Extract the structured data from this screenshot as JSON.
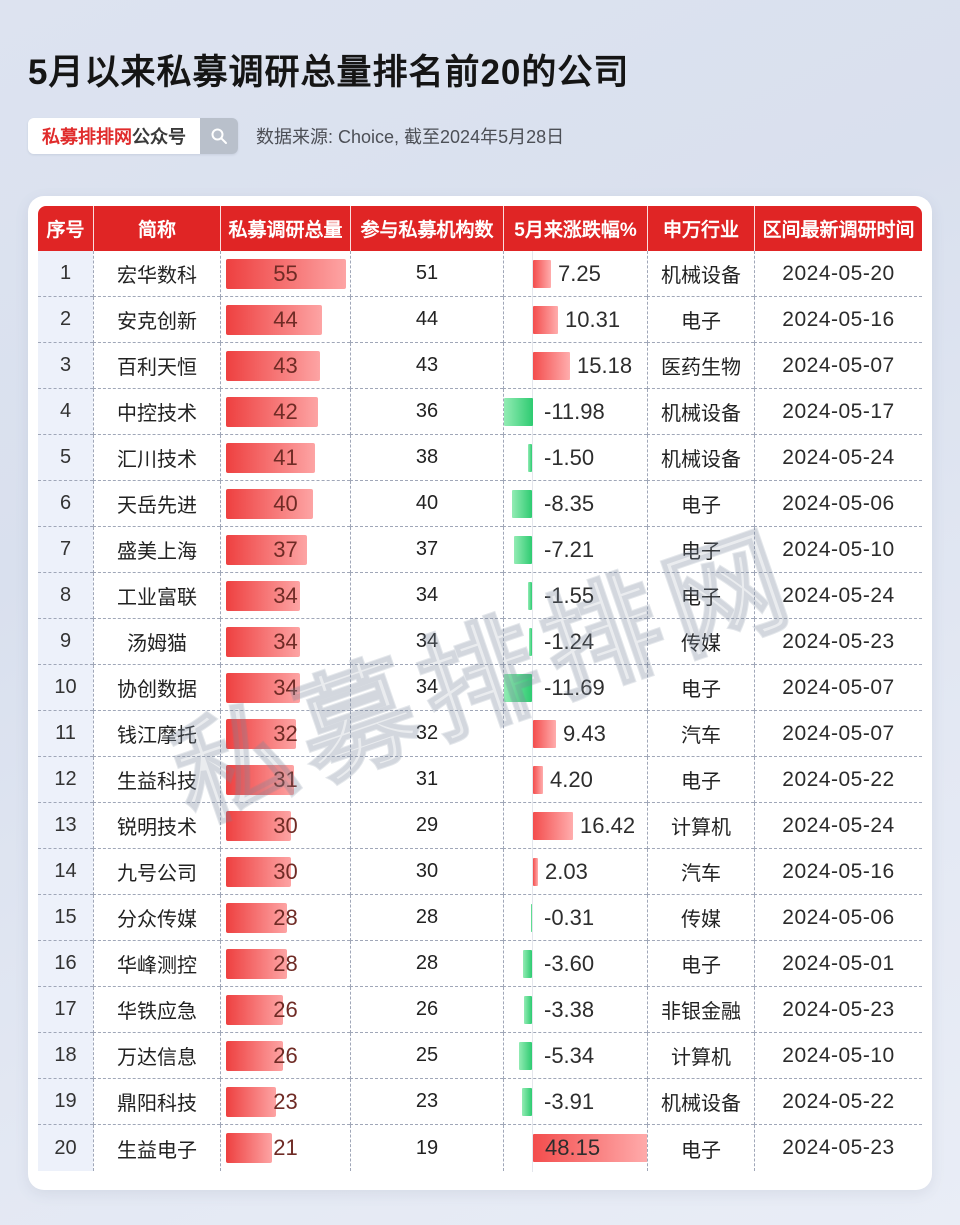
{
  "page": {
    "title": "5月以来私募调研总量排名前20的公司",
    "badge": {
      "brand": "私募排排网",
      "suffix": "公众号"
    },
    "source": "数据来源: Choice, 截至2024年5月28日",
    "watermark": "私募排排网"
  },
  "colors": {
    "header_red": "#e02525",
    "badge_brand_red": "#e02c2c",
    "badge_button_gray": "#b9c0cb",
    "rank_column_bg": "#edf1fa",
    "vol_bar_start": "#ee4040",
    "vol_bar_end": "#fda4a4",
    "pct_pos_start": "#f34d4d",
    "pct_pos_end": "#ffadad",
    "pct_neg_start": "#2ecb71",
    "pct_neg_end": "#93ecb4",
    "vol_num_text": "#6f2b25",
    "dashed_border": "#a0a7b8"
  },
  "chart_data": {
    "type": "table",
    "title": "5月以来私募调研总量排名前20的公司",
    "columns": [
      "序号",
      "简称",
      "私募调研总量",
      "参与私募机构数",
      "5月来涨跌幅%",
      "申万行业",
      "区间最新调研时间"
    ],
    "volume_axis_max": 55,
    "pct_axis_max": 48.15,
    "rows": [
      {
        "rank": 1,
        "name": "宏华数科",
        "volume": 55,
        "orgs": 51,
        "pct": "7.25",
        "industry": "机械设备",
        "date": "2024-05-20"
      },
      {
        "rank": 2,
        "name": "安克创新",
        "volume": 44,
        "orgs": 44,
        "pct": "10.31",
        "industry": "电子",
        "date": "2024-05-16"
      },
      {
        "rank": 3,
        "name": "百利天恒",
        "volume": 43,
        "orgs": 43,
        "pct": "15.18",
        "industry": "医药生物",
        "date": "2024-05-07"
      },
      {
        "rank": 4,
        "name": "中控技术",
        "volume": 42,
        "orgs": 36,
        "pct": "-11.98",
        "industry": "机械设备",
        "date": "2024-05-17"
      },
      {
        "rank": 5,
        "name": "汇川技术",
        "volume": 41,
        "orgs": 38,
        "pct": "-1.50",
        "industry": "机械设备",
        "date": "2024-05-24"
      },
      {
        "rank": 6,
        "name": "天岳先进",
        "volume": 40,
        "orgs": 40,
        "pct": "-8.35",
        "industry": "电子",
        "date": "2024-05-06"
      },
      {
        "rank": 7,
        "name": "盛美上海",
        "volume": 37,
        "orgs": 37,
        "pct": "-7.21",
        "industry": "电子",
        "date": "2024-05-10"
      },
      {
        "rank": 8,
        "name": "工业富联",
        "volume": 34,
        "orgs": 34,
        "pct": "-1.55",
        "industry": "电子",
        "date": "2024-05-24"
      },
      {
        "rank": 9,
        "name": "汤姆猫",
        "volume": 34,
        "orgs": 34,
        "pct": "-1.24",
        "industry": "传媒",
        "date": "2024-05-23"
      },
      {
        "rank": 10,
        "name": "协创数据",
        "volume": 34,
        "orgs": 34,
        "pct": "-11.69",
        "industry": "电子",
        "date": "2024-05-07"
      },
      {
        "rank": 11,
        "name": "钱江摩托",
        "volume": 32,
        "orgs": 32,
        "pct": "9.43",
        "industry": "汽车",
        "date": "2024-05-07"
      },
      {
        "rank": 12,
        "name": "生益科技",
        "volume": 31,
        "orgs": 31,
        "pct": "4.20",
        "industry": "电子",
        "date": "2024-05-22"
      },
      {
        "rank": 13,
        "name": "锐明技术",
        "volume": 30,
        "orgs": 29,
        "pct": "16.42",
        "industry": "计算机",
        "date": "2024-05-24"
      },
      {
        "rank": 14,
        "name": "九号公司",
        "volume": 30,
        "orgs": 30,
        "pct": "2.03",
        "industry": "汽车",
        "date": "2024-05-16"
      },
      {
        "rank": 15,
        "name": "分众传媒",
        "volume": 28,
        "orgs": 28,
        "pct": "-0.31",
        "industry": "传媒",
        "date": "2024-05-06"
      },
      {
        "rank": 16,
        "name": "华峰测控",
        "volume": 28,
        "orgs": 28,
        "pct": "-3.60",
        "industry": "电子",
        "date": "2024-05-01"
      },
      {
        "rank": 17,
        "name": "华铁应急",
        "volume": 26,
        "orgs": 26,
        "pct": "-3.38",
        "industry": "非银金融",
        "date": "2024-05-23"
      },
      {
        "rank": 18,
        "name": "万达信息",
        "volume": 26,
        "orgs": 25,
        "pct": "-5.34",
        "industry": "计算机",
        "date": "2024-05-10"
      },
      {
        "rank": 19,
        "name": "鼎阳科技",
        "volume": 23,
        "orgs": 23,
        "pct": "-3.91",
        "industry": "机械设备",
        "date": "2024-05-22"
      },
      {
        "rank": 20,
        "name": "生益电子",
        "volume": 21,
        "orgs": 19,
        "pct": "48.15",
        "industry": "电子",
        "date": "2024-05-23"
      }
    ]
  }
}
